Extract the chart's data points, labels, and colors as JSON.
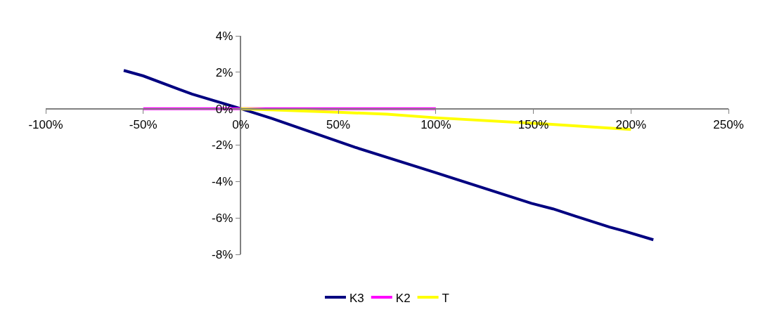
{
  "chart_data": {
    "type": "line",
    "series": [
      {
        "name": "K3",
        "color": "#000080",
        "x": [
          -60,
          -50,
          -25,
          0,
          16,
          58.6,
          99.5,
          149,
          160,
          171.5,
          189,
          196,
          211.5
        ],
        "values": [
          2.1,
          1.8,
          0.8,
          0,
          -0.54,
          -2.12,
          -3.5,
          -5.2,
          -5.5,
          -5.9,
          -6.5,
          -6.7,
          -7.2
        ]
      },
      {
        "name": "K2",
        "color": "#ff00ff",
        "x": [
          -50,
          0,
          100
        ],
        "values": [
          0,
          0,
          0
        ]
      },
      {
        "name": "T",
        "color": "#ffff00",
        "x": [
          0,
          50,
          75,
          100,
          150,
          200
        ],
        "values": [
          0,
          -0.2,
          -0.3,
          -0.5,
          -0.8,
          -1.14
        ]
      }
    ],
    "xlim": [
      -100,
      250
    ],
    "xticks": [
      {
        "value": -100,
        "label": "-100%"
      },
      {
        "value": -50,
        "label": "-50%"
      },
      {
        "value": 0,
        "label": "0%"
      },
      {
        "value": 50,
        "label": "50%"
      },
      {
        "value": 100,
        "label": "100%"
      },
      {
        "value": 150,
        "label": "150%"
      },
      {
        "value": 200,
        "label": "200%"
      },
      {
        "value": 250,
        "label": "250%"
      }
    ],
    "ylim": [
      -8,
      4
    ],
    "yticks": [
      {
        "value": -8,
        "label": "-8%"
      },
      {
        "value": -6,
        "label": "-6%"
      },
      {
        "value": -4,
        "label": "-4%"
      },
      {
        "value": -2,
        "label": "-2%"
      },
      {
        "value": 0,
        "label": "0%"
      },
      {
        "value": 2,
        "label": "2%"
      },
      {
        "value": 4,
        "label": "4%"
      }
    ],
    "legend": "bottom",
    "marker": "none",
    "line_style": "solid"
  }
}
